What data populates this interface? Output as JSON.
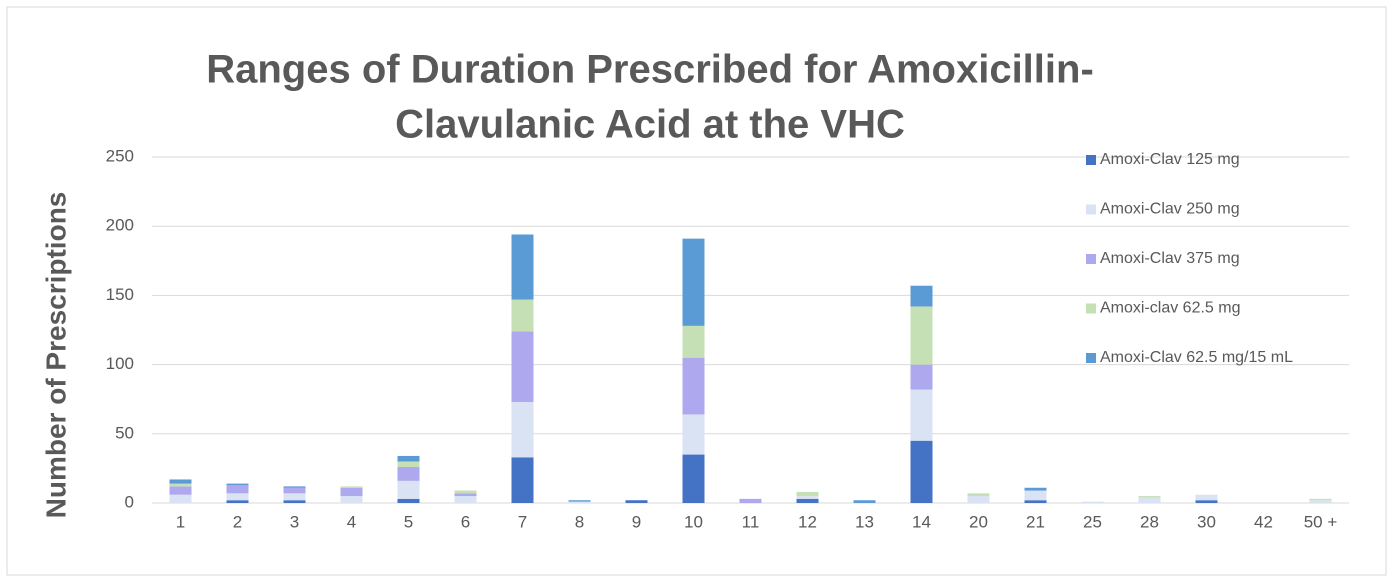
{
  "chart_data": {
    "type": "stacked_bar",
    "title": [
      "Ranges of Duration Prescribed for Amoxicillin-",
      "Clavulanic Acid at the VHC"
    ],
    "y_label": "Number of Prescriptions",
    "categories": [
      "1",
      "2",
      "3",
      "4",
      "5",
      "6",
      "7",
      "8",
      "9",
      "10",
      "11",
      "12",
      "13",
      "14",
      "20",
      "21",
      "25",
      "28",
      "30",
      "42",
      "50 +"
    ],
    "series": [
      {
        "name": "Amoxi-Clav 125 mg",
        "color": "#4472c4",
        "values": [
          0,
          2,
          2,
          0,
          3,
          0,
          33,
          0,
          2,
          35,
          0,
          3,
          0,
          45,
          0,
          2,
          0,
          0,
          2,
          0,
          0
        ]
      },
      {
        "name": "Amoxi-Clav 250 mg",
        "color": "#dae3f3",
        "values": [
          6,
          5,
          5,
          5,
          13,
          5,
          40,
          1,
          0,
          29,
          0,
          2,
          0,
          37,
          5,
          7,
          1,
          4,
          4,
          0,
          2
        ]
      },
      {
        "name": "Amoxi-Clav 375 mg",
        "color": "#aea8ee",
        "values": [
          6,
          6,
          4,
          6,
          10,
          2,
          51,
          0,
          0,
          41,
          3,
          0,
          0,
          18,
          0,
          0,
          0,
          0,
          0,
          0,
          0
        ]
      },
      {
        "name": "Amoxi-clav 62.5 mg",
        "color": "#c5e0b4",
        "values": [
          2,
          0,
          0,
          1,
          4,
          2,
          23,
          0,
          0,
          23,
          0,
          3,
          0,
          42,
          2,
          0,
          0,
          1,
          0,
          0,
          1
        ]
      },
      {
        "name": "Amoxi-Clav 62.5 mg/15 mL",
        "color": "#5b9bd5",
        "values": [
          3,
          1,
          1,
          0,
          4,
          0,
          47,
          1,
          0,
          63,
          0,
          0,
          2,
          15,
          0,
          2,
          0,
          0,
          0,
          0,
          0
        ]
      }
    ],
    "ylim": [
      0,
      250
    ],
    "yticks": [
      0,
      50,
      100,
      150,
      200,
      250
    ],
    "grid": true,
    "legend": "right"
  }
}
